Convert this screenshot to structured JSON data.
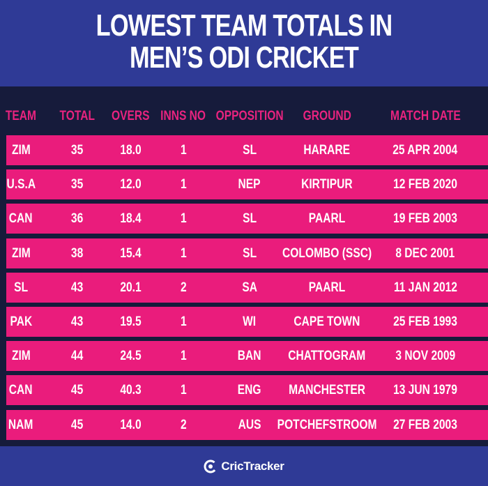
{
  "header": {
    "title_line1": "LOWEST TEAM TOTALS IN",
    "title_line2": "MEN’S ODI CRICKET"
  },
  "colors": {
    "background": "#2f3a96",
    "panel": "#161b3b",
    "row": "#ea1c7c",
    "header_text": "#e8237f"
  },
  "table": {
    "columns": [
      "TEAM",
      "TOTAL",
      "OVERS",
      "INNS NO",
      "OPPOSITION",
      "GROUND",
      "MATCH DATE"
    ],
    "rows": [
      [
        "ZIM",
        "35",
        "18.0",
        "1",
        "SL",
        "HARARE",
        "25 APR 2004"
      ],
      [
        "U.S.A",
        "35",
        "12.0",
        "1",
        "NEP",
        "KIRTIPUR",
        "12 FEB 2020"
      ],
      [
        "CAN",
        "36",
        "18.4",
        "1",
        "SL",
        "PAARL",
        "19 FEB 2003"
      ],
      [
        "ZIM",
        "38",
        "15.4",
        "1",
        "SL",
        "COLOMBO (SSC)",
        "8 DEC 2001"
      ],
      [
        "SL",
        "43",
        "20.1",
        "2",
        "SA",
        "PAARL",
        "11 JAN 2012"
      ],
      [
        "PAK",
        "43",
        "19.5",
        "1",
        "WI",
        "CAPE TOWN",
        "25 FEB 1993"
      ],
      [
        "ZIM",
        "44",
        "24.5",
        "1",
        "BAN",
        "CHATTOGRAM",
        "3 NOV 2009"
      ],
      [
        "CAN",
        "45",
        "40.3",
        "1",
        "ENG",
        "MANCHESTER",
        "13 JUN 1979"
      ],
      [
        "NAM",
        "45",
        "14.0",
        "2",
        "AUS",
        "POTCHEFSTROOM",
        "27 FEB 2003"
      ]
    ]
  },
  "footer": {
    "brand": "CricTracker",
    "logo_icon": "crictracker-logo-icon"
  }
}
